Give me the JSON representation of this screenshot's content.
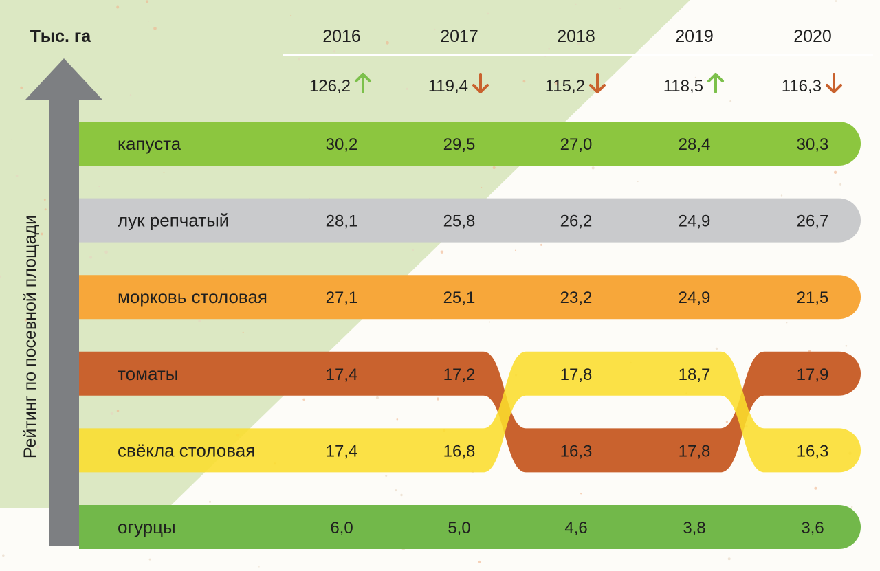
{
  "unit_label": "Тыс. га",
  "axis_label": "Рейтинг по посевной площади",
  "colors": {
    "background": "#fdfcf8",
    "triangle": "#dce8c3",
    "arrow": "#7d7f82",
    "kapusta": "#8cc63f",
    "luk": "#c9cacc",
    "morkov": "#f7a73a",
    "tomaty": "#c9622e",
    "svekla": "#fbdd2c",
    "ogurtsy": "#72b84a",
    "arrow_up": "#7cc04b",
    "arrow_down": "#c9622e",
    "text": "#1f1f1f"
  },
  "chart_data": {
    "type": "table",
    "years": [
      "2016",
      "2017",
      "2018",
      "2019",
      "2020"
    ],
    "totals": [
      {
        "value": "126,2",
        "trend": "up"
      },
      {
        "value": "119,4",
        "trend": "down"
      },
      {
        "value": "115,2",
        "trend": "down"
      },
      {
        "value": "118,5",
        "trend": "up"
      },
      {
        "value": "116,3",
        "trend": "down"
      }
    ],
    "rows": [
      {
        "name": "капуста",
        "color_key": "kapusta",
        "values": [
          "30,2",
          "29,5",
          "27,0",
          "28,4",
          "30,3"
        ],
        "rank": [
          1,
          1,
          1,
          1,
          1
        ]
      },
      {
        "name": "лук репчатый",
        "color_key": "luk",
        "values": [
          "28,1",
          "25,8",
          "26,2",
          "24,9",
          "26,7"
        ],
        "rank": [
          2,
          2,
          2,
          2,
          2
        ]
      },
      {
        "name": "морковь столовая",
        "color_key": "morkov",
        "values": [
          "27,1",
          "25,1",
          "23,2",
          "24,9",
          "21,5"
        ],
        "rank": [
          3,
          3,
          3,
          3,
          3
        ]
      },
      {
        "name": "томаты",
        "color_key": "tomaty",
        "values": [
          "17,4",
          "17,2",
          "16,3",
          "17,8",
          "17,9"
        ],
        "rank": [
          4,
          4,
          5,
          5,
          4
        ]
      },
      {
        "name": "свёкла столовая",
        "color_key": "svekla",
        "values": [
          "17,4",
          "16,8",
          "17,8",
          "18,7",
          "16,3"
        ],
        "rank": [
          5,
          5,
          4,
          4,
          5
        ]
      },
      {
        "name": "огурцы",
        "color_key": "ogurtsy",
        "values": [
          "6,0",
          "5,0",
          "4,6",
          "3,8",
          "3,6"
        ],
        "rank": [
          6,
          6,
          6,
          6,
          6
        ]
      }
    ]
  }
}
